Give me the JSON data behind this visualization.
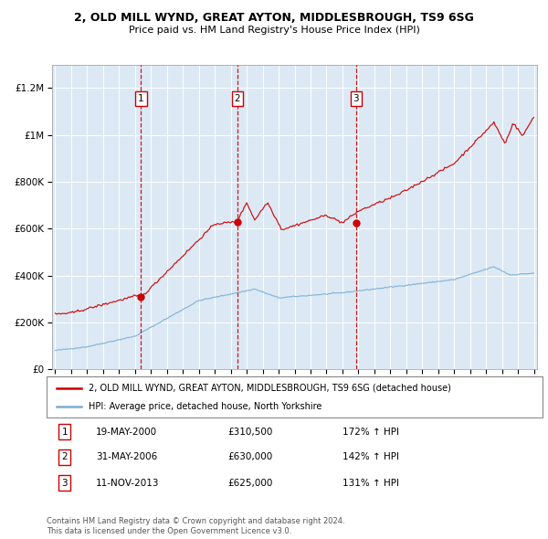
{
  "title": "2, OLD MILL WYND, GREAT AYTON, MIDDLESBROUGH, TS9 6SG",
  "subtitle": "Price paid vs. HM Land Registry's House Price Index (HPI)",
  "sale_year_floats": [
    2000.38,
    2006.41,
    2013.86
  ],
  "sale_prices": [
    310500,
    630000,
    625000
  ],
  "sale_labels": [
    "1",
    "2",
    "3"
  ],
  "sale_info": [
    {
      "label": "1",
      "date": "19-MAY-2000",
      "price": "£310,500",
      "hpi": "172% ↑ HPI"
    },
    {
      "label": "2",
      "date": "31-MAY-2006",
      "price": "£630,000",
      "hpi": "142% ↑ HPI"
    },
    {
      "label": "3",
      "date": "11-NOV-2013",
      "price": "£625,000",
      "hpi": "131% ↑ HPI"
    }
  ],
  "red_line_color": "#cc0000",
  "blue_line_color": "#7aafd4",
  "dashed_color": "#cc0000",
  "bg_color": "#dce9f5",
  "grid_color": "#ffffff",
  "legend_line1": "2, OLD MILL WYND, GREAT AYTON, MIDDLESBROUGH, TS9 6SG (detached house)",
  "legend_line2": "HPI: Average price, detached house, North Yorkshire",
  "footer1": "Contains HM Land Registry data © Crown copyright and database right 2024.",
  "footer2": "This data is licensed under the Open Government Licence v3.0.",
  "ylim": [
    0,
    1300000
  ],
  "yticks": [
    0,
    200000,
    400000,
    600000,
    800000,
    1000000,
    1200000
  ],
  "xstart_year": 1995,
  "xend_year": 2025
}
